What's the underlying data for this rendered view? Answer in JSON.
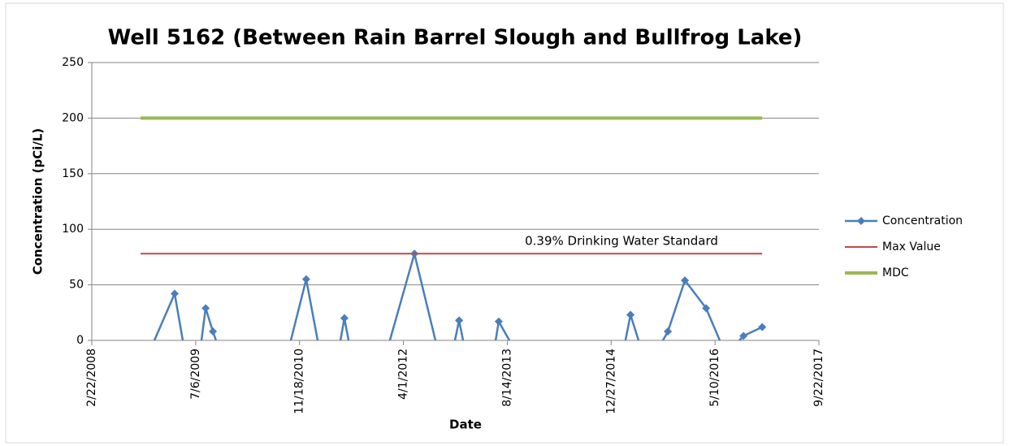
{
  "chart_data": {
    "type": "line",
    "title": "Well 5162 (Between Rain Barrel Slough and Bullfrog Lake)",
    "x_label": "Date",
    "y_label": "Concentration (pCi/L)",
    "annotation": "0.39% Drinking Water Standard",
    "xlim": [
      "2/22/2008",
      "9/22/2017"
    ],
    "xticks": [
      "2/22/2008",
      "7/6/2009",
      "11/18/2010",
      "4/1/2012",
      "8/14/2013",
      "12/27/2014",
      "5/10/2016",
      "9/22/2017"
    ],
    "ylim": [
      0,
      250
    ],
    "yticks": [
      0,
      50,
      100,
      150,
      200,
      250
    ],
    "grid": true,
    "legend": "right",
    "series": [
      {
        "name": "Concentration",
        "color": "#4a7ebb",
        "marker": "diamond",
        "x": [
          "12/19/2008",
          "3/27/2009",
          "5/5/2009",
          null,
          "8/3/2009",
          "8/23/2009",
          "9/27/2009",
          "10/12/2009",
          null,
          "10/7/2010",
          "12/20/2010",
          "2/13/2011",
          null,
          "6/3/2011",
          "6/22/2011",
          "7/12/2011",
          null,
          "1/27/2012",
          "5/24/2012",
          "9/2/2012",
          null,
          "12/5/2012",
          "12/25/2012",
          "1/13/2013",
          null,
          "6/19/2013",
          "7/4/2013",
          "8/24/2013",
          null,
          "3/6/2015",
          "3/30/2015",
          "5/8/2015",
          null,
          "9/2/2015",
          "9/26/2015",
          "12/17/2015",
          "3/28/2016",
          "6/2/2016",
          null,
          "9/4/2016",
          "9/24/2016",
          "12/23/2016"
        ],
        "values": [
          0,
          42,
          0,
          null,
          0,
          29,
          8,
          0,
          null,
          0,
          55,
          0,
          null,
          0,
          20,
          0,
          null,
          0,
          78,
          0,
          null,
          0,
          18,
          0,
          null,
          0,
          17,
          0,
          null,
          0,
          23,
          0,
          null,
          0,
          8,
          54,
          29,
          0,
          null,
          0,
          4,
          12
        ]
      },
      {
        "name": "Max Value",
        "color": "#be4b48",
        "x": [
          "10/14/2008",
          "12/23/2016"
        ],
        "values": [
          78,
          78
        ]
      },
      {
        "name": "MDC",
        "color": "#98b954",
        "x": [
          "10/14/2008",
          "12/23/2016"
        ],
        "values": [
          200,
          200
        ]
      }
    ]
  }
}
